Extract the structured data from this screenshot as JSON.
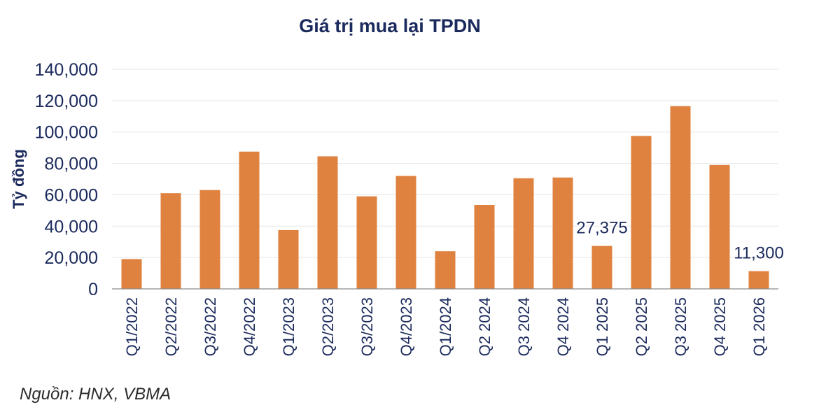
{
  "chart_data": {
    "type": "bar",
    "title": "Giá trị mua lại TPDN",
    "ylabel": "Tỷ đồng",
    "xlabel": "",
    "ylim": [
      0,
      140000
    ],
    "yticks": [
      "0",
      "20,000",
      "40,000",
      "60,000",
      "80,000",
      "100,000",
      "120,000",
      "140,000"
    ],
    "grid": true,
    "bar_color": "#e0823f",
    "text_color": "#1b2a5c",
    "categories": [
      "Q1/2022",
      "Q2/2022",
      "Q3/2022",
      "Q4/2022",
      "Q1/2023",
      "Q2/2023",
      "Q3/2023",
      "Q4/2023",
      "Q1/2024",
      "Q2 2024",
      "Q3 2024",
      "Q4 2024",
      "Q1 2025",
      "Q2 2025",
      "Q3 2025",
      "Q4 2025",
      "Q1 2026"
    ],
    "values": [
      19000,
      61000,
      63000,
      87500,
      37500,
      84500,
      59000,
      72000,
      24000,
      53500,
      70500,
      71000,
      27375,
      97500,
      116500,
      79000,
      11300
    ],
    "data_labels": [
      {
        "index": 12,
        "text": "27,375"
      },
      {
        "index": 16,
        "text": "11,300"
      }
    ]
  },
  "source": "Nguồn: HNX, VBMA"
}
